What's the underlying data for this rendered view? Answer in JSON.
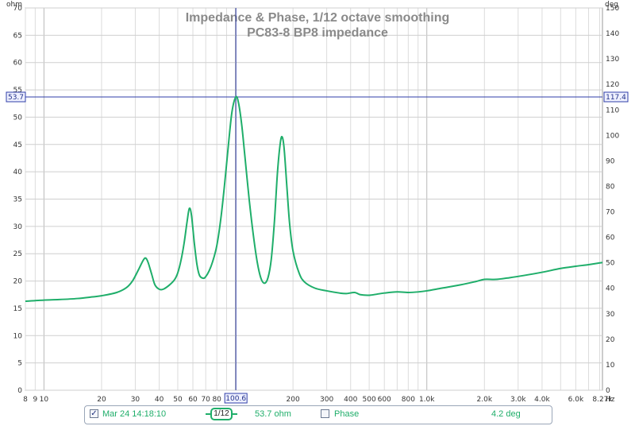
{
  "chart_data": {
    "type": "line",
    "title": "Impedance & Phase, 1/12 octave smoothing",
    "subtitle": "PC83-8 BP8 impedance",
    "y_left_unit": "ohm",
    "y_right_unit": "deg",
    "x_unit": "Hz",
    "x_scale": "log",
    "xlim": [
      8,
      8270
    ],
    "ylim": [
      0,
      70
    ],
    "y2lim": [
      0,
      150
    ],
    "grid": true,
    "x_ticks": [
      {
        "v": 8,
        "label": "8"
      },
      {
        "v": 9,
        "label": "9"
      },
      {
        "v": 10,
        "label": "10"
      },
      {
        "v": 20,
        "label": "20"
      },
      {
        "v": 30,
        "label": "30"
      },
      {
        "v": 40,
        "label": "40"
      },
      {
        "v": 50,
        "label": "50"
      },
      {
        "v": 60,
        "label": "60"
      },
      {
        "v": 70,
        "label": "70"
      },
      {
        "v": 80,
        "label": "80"
      },
      {
        "v": 200,
        "label": "200"
      },
      {
        "v": 300,
        "label": "300"
      },
      {
        "v": 400,
        "label": "400"
      },
      {
        "v": 500,
        "label": "500"
      },
      {
        "v": 600,
        "label": "600"
      },
      {
        "v": 800,
        "label": "800"
      },
      {
        "v": 1000,
        "label": "1.0k"
      },
      {
        "v": 2000,
        "label": "2.0k"
      },
      {
        "v": 3000,
        "label": "3.0k"
      },
      {
        "v": 4000,
        "label": "4.0k"
      },
      {
        "v": 6000,
        "label": "6.0k"
      },
      {
        "v": 8270,
        "label": "8.27k"
      }
    ],
    "y_ticks": [
      0,
      5,
      10,
      15,
      20,
      25,
      30,
      35,
      40,
      45,
      50,
      55,
      60,
      65,
      70
    ],
    "y2_ticks": [
      0,
      10,
      20,
      30,
      40,
      50,
      60,
      70,
      80,
      90,
      100,
      110,
      120,
      130,
      140,
      150
    ],
    "cursor": {
      "x": 100.6,
      "x_label": "100.6",
      "y_label": "53.7",
      "y2_label": "117.4",
      "y": 53.7
    },
    "series": [
      {
        "name": "Mar 24 14:18:10",
        "color": "#1fae6a",
        "points": [
          [
            8,
            16.3
          ],
          [
            10,
            16.5
          ],
          [
            12,
            16.6
          ],
          [
            15,
            16.8
          ],
          [
            18,
            17.1
          ],
          [
            20,
            17.3
          ],
          [
            24,
            17.9
          ],
          [
            27,
            18.8
          ],
          [
            29,
            20.0
          ],
          [
            31,
            21.9
          ],
          [
            33,
            23.8
          ],
          [
            34,
            24.2
          ],
          [
            35,
            23.4
          ],
          [
            36.5,
            21.3
          ],
          [
            38,
            19.3
          ],
          [
            40,
            18.5
          ],
          [
            42,
            18.5
          ],
          [
            45,
            19.2
          ],
          [
            48,
            20.2
          ],
          [
            50,
            21.5
          ],
          [
            52,
            23.8
          ],
          [
            54,
            27.0
          ],
          [
            56,
            31.0
          ],
          [
            57.5,
            33.3
          ],
          [
            59,
            32.0
          ],
          [
            61,
            27.0
          ],
          [
            63,
            23.0
          ],
          [
            65,
            21.0
          ],
          [
            68,
            20.5
          ],
          [
            70,
            20.8
          ],
          [
            73,
            21.9
          ],
          [
            76,
            23.5
          ],
          [
            80,
            26.5
          ],
          [
            84,
            31.5
          ],
          [
            88,
            38.0
          ],
          [
            92,
            45.0
          ],
          [
            96,
            51.0
          ],
          [
            100.6,
            53.7
          ],
          [
            104,
            52.5
          ],
          [
            108,
            48.5
          ],
          [
            112,
            43.0
          ],
          [
            118,
            35.0
          ],
          [
            124,
            28.5
          ],
          [
            130,
            23.5
          ],
          [
            136,
            20.5
          ],
          [
            142,
            19.6
          ],
          [
            148,
            20.6
          ],
          [
            154,
            24.0
          ],
          [
            160,
            31.0
          ],
          [
            166,
            40.0
          ],
          [
            172,
            45.5
          ],
          [
            176,
            46.3
          ],
          [
            180,
            44.0
          ],
          [
            186,
            37.0
          ],
          [
            192,
            30.5
          ],
          [
            200,
            25.5
          ],
          [
            215,
            21.5
          ],
          [
            230,
            19.8
          ],
          [
            260,
            18.7
          ],
          [
            300,
            18.2
          ],
          [
            350,
            17.8
          ],
          [
            380,
            17.7
          ],
          [
            420,
            17.9
          ],
          [
            450,
            17.5
          ],
          [
            500,
            17.4
          ],
          [
            550,
            17.6
          ],
          [
            600,
            17.8
          ],
          [
            700,
            18.0
          ],
          [
            800,
            17.9
          ],
          [
            900,
            18.0
          ],
          [
            1000,
            18.2
          ],
          [
            1200,
            18.7
          ],
          [
            1500,
            19.3
          ],
          [
            1800,
            19.9
          ],
          [
            2000,
            20.3
          ],
          [
            2300,
            20.3
          ],
          [
            2700,
            20.6
          ],
          [
            3200,
            21.0
          ],
          [
            4000,
            21.6
          ],
          [
            5000,
            22.3
          ],
          [
            6000,
            22.7
          ],
          [
            7000,
            23.0
          ],
          [
            8270,
            23.4
          ]
        ]
      }
    ]
  },
  "legend": {
    "trace_label": "Mar 24 14:18:10",
    "trace_checked": true,
    "smoothing_label": "1/12",
    "trace_value": "53.7 ohm",
    "phase_label": "Phase",
    "phase_checked": false,
    "phase_value": "4.2 deg"
  }
}
